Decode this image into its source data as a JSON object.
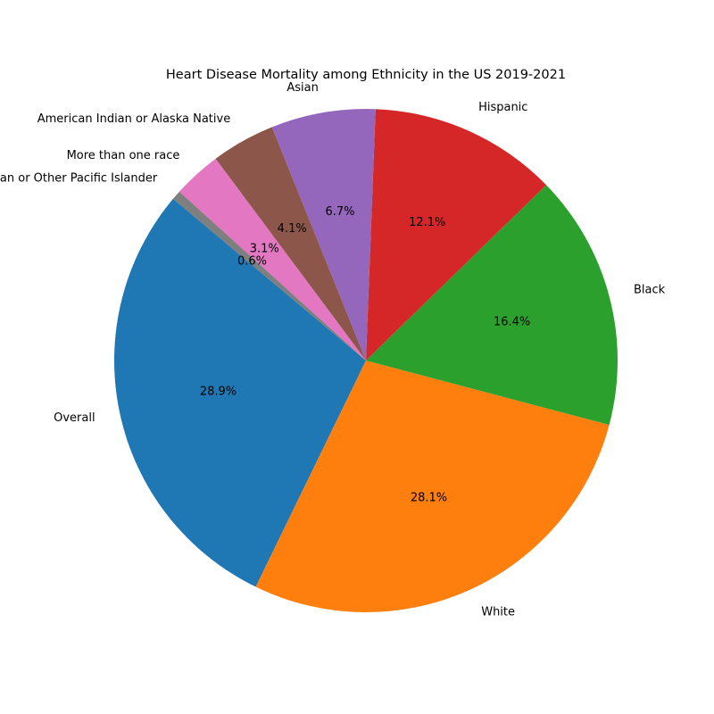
{
  "chart_data": {
    "type": "pie",
    "title": "Heart Disease Mortality among Ethnicity in the US 2019-2021",
    "start_angle_deg": 140,
    "direction": "counterclockwise",
    "slices": [
      {
        "label": "Overall",
        "value": 28.9,
        "pct_label": "28.9%",
        "color": "#1f77b4"
      },
      {
        "label": "White",
        "value": 28.1,
        "pct_label": "28.1%",
        "color": "#ff7f0e"
      },
      {
        "label": "Black",
        "value": 16.4,
        "pct_label": "16.4%",
        "color": "#2ca02c"
      },
      {
        "label": "Hispanic",
        "value": 12.1,
        "pct_label": "12.1%",
        "color": "#d62728"
      },
      {
        "label": "Asian",
        "value": 6.7,
        "pct_label": "6.7%",
        "color": "#9467bd"
      },
      {
        "label": "American Indian or Alaska Native",
        "value": 4.1,
        "pct_label": "4.1%",
        "color": "#8c564b"
      },
      {
        "label": "More than one race",
        "value": 3.1,
        "pct_label": "3.1%",
        "color": "#e377c2"
      },
      {
        "label": "Native Hawaiian or Other Pacific Islander",
        "value": 0.6,
        "pct_label": "0.6%",
        "color": "#7f7f7f"
      }
    ]
  }
}
